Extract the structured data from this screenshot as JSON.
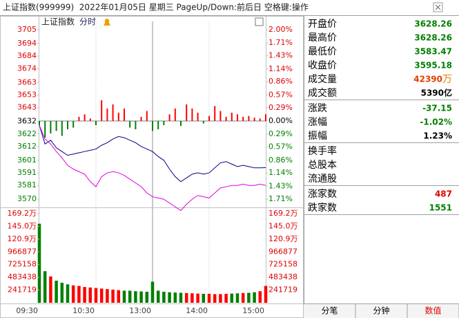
{
  "title_bar": {
    "text": "上证指数(999999)  2022年01月05日 星期三 PageUp/Down:前后日 空格键:操作"
  },
  "chart_header": {
    "name": "上证指数",
    "mode": "分时"
  },
  "chart_data": [
    {
      "type": "line",
      "categories": [
        "09:30",
        null,
        null,
        null,
        null,
        null,
        null,
        null,
        null,
        null,
        "10:30",
        null,
        null,
        null,
        null,
        null,
        null,
        null,
        null,
        null,
        "13:00",
        null,
        null,
        null,
        null,
        null,
        null,
        null,
        null,
        null,
        "14:00",
        null,
        null,
        null,
        null,
        null,
        null,
        null,
        null,
        null,
        "15:00"
      ],
      "series": [
        {
          "color": "#000080",
          "values": [
            3629,
            3614,
            3617,
            3611,
            3608,
            3605,
            3606,
            3607,
            3608,
            3609,
            3610,
            3613,
            3615,
            3618,
            3620,
            3619,
            3617,
            3615,
            3612,
            3610,
            3608,
            3604,
            3601,
            3594,
            3588,
            3584,
            3587,
            3590,
            3591,
            3590,
            3591,
            3595,
            3599,
            3600,
            3598,
            3596,
            3597,
            3596,
            3595,
            3595,
            3595.18
          ]
        },
        {
          "color": "#e000e0",
          "values": [
            3629,
            3618,
            3614,
            3608,
            3603,
            3597,
            3594,
            3592,
            3590,
            3584,
            3580,
            3588,
            3591,
            3592,
            3591,
            3589,
            3586,
            3583,
            3580,
            3575,
            3572,
            3571,
            3570,
            3567,
            3564,
            3561,
            3566,
            3570,
            3573,
            3572,
            3571,
            3575,
            3579,
            3580,
            3581,
            3581,
            3582,
            3581,
            3581,
            3582,
            3581
          ]
        }
      ],
      "breadth": {
        "up_color": "#ff0000",
        "down_color": "#008000",
        "values": [
          -5,
          -20,
          -15,
          -12,
          -18,
          -10,
          -8,
          5,
          8,
          3,
          -5,
          25,
          15,
          20,
          10,
          15,
          -8,
          -10,
          5,
          12,
          -12,
          -10,
          -5,
          8,
          15,
          -6,
          20,
          15,
          10,
          -3,
          6,
          18,
          12,
          5,
          10,
          8,
          5,
          6,
          4,
          3,
          8
        ]
      },
      "ylim": [
        3559.66,
        3705
      ],
      "yticks": [
        3705,
        3694,
        3684,
        3674,
        3663,
        3653,
        3643,
        3632,
        3622,
        3612,
        3601,
        3591,
        3581,
        3570
      ],
      "y2lim": [
        -2,
        2
      ],
      "y2ticks": [
        {
          "value": 2,
          "label": "2.00%"
        },
        {
          "value": 1.71,
          "label": "1.71%"
        },
        {
          "value": 1.43,
          "label": "1.43%"
        },
        {
          "value": 1.14,
          "label": "1.14%"
        },
        {
          "value": 0.86,
          "label": "0.86%"
        },
        {
          "value": 0.57,
          "label": "0.57%"
        },
        {
          "value": 0.29,
          "label": "0.29%"
        },
        {
          "value": 0,
          "label": "0.00%"
        },
        {
          "value": -0.29,
          "label": "0.29%"
        },
        {
          "value": -0.57,
          "label": "0.57%"
        },
        {
          "value": -0.86,
          "label": "0.86%"
        },
        {
          "value": -1.14,
          "label": "1.14%"
        },
        {
          "value": -1.43,
          "label": "1.43%"
        },
        {
          "value": -1.71,
          "label": "1.71%"
        }
      ]
    },
    {
      "type": "bar",
      "categories": [
        "09:30",
        null,
        null,
        null,
        null,
        null,
        null,
        null,
        null,
        null,
        "10:30",
        null,
        null,
        null,
        null,
        null,
        null,
        null,
        null,
        null,
        "13:00",
        null,
        null,
        null,
        null,
        null,
        null,
        null,
        null,
        null,
        "14:00",
        null,
        null,
        null,
        null,
        null,
        null,
        null,
        null,
        null,
        "15:00"
      ],
      "up_color": "#ff0000",
      "down_color": "#008000",
      "values": [
        1500000,
        600000,
        500000,
        420000,
        380000,
        350000,
        330000,
        320000,
        300000,
        290000,
        280000,
        270000,
        260000,
        250000,
        240000,
        230000,
        230000,
        220000,
        215000,
        210000,
        400000,
        230000,
        210000,
        200000,
        195000,
        190000,
        185000,
        180000,
        175000,
        170000,
        170000,
        165000,
        165000,
        170000,
        175000,
        180000,
        185000,
        190000,
        200000,
        220000,
        320000
      ],
      "ylim": [
        0,
        1692033
      ],
      "yticks": [
        {
          "value": 1692033,
          "label": "169.2万"
        },
        {
          "value": 1450314,
          "label": "145.0万"
        },
        {
          "value": 1208595,
          "label": "120.9万"
        },
        966877,
        725158,
        483438,
        241719
      ]
    }
  ],
  "quote_panel": {
    "groups": [
      [
        {
          "label": "开盘价",
          "value": "3628.26",
          "color": "#008000"
        },
        {
          "label": "最高价",
          "value": "3628.26",
          "color": "#008000"
        },
        {
          "label": "最低价",
          "value": "3583.47",
          "color": "#008000"
        },
        {
          "label": "收盘价",
          "value": "3595.18",
          "color": "#008000"
        },
        {
          "label": "成交量",
          "value": "42390",
          "color": "#e04000",
          "unit": "万",
          "unit_color": "#e08000"
        },
        {
          "label": "成交额",
          "value": "5390亿",
          "color": "#000000"
        }
      ],
      [
        {
          "label": "涨跌",
          "value": "-37.15",
          "color": "#008000"
        },
        {
          "label": "涨幅",
          "value": "-1.02%",
          "color": "#008000"
        },
        {
          "label": "振幅",
          "value": "1.23%",
          "color": "#000000"
        }
      ],
      [
        {
          "label": "换手率"
        },
        {
          "label": "总股本"
        },
        {
          "label": "流通股"
        }
      ],
      [
        {
          "label": "涨家数",
          "value": "487",
          "color": "#e00000"
        },
        {
          "label": "跌家数",
          "value": "1551",
          "color": "#008000"
        }
      ]
    ]
  },
  "tabs": [
    "分笔",
    "分钟",
    "数值"
  ],
  "active_tab": 2
}
